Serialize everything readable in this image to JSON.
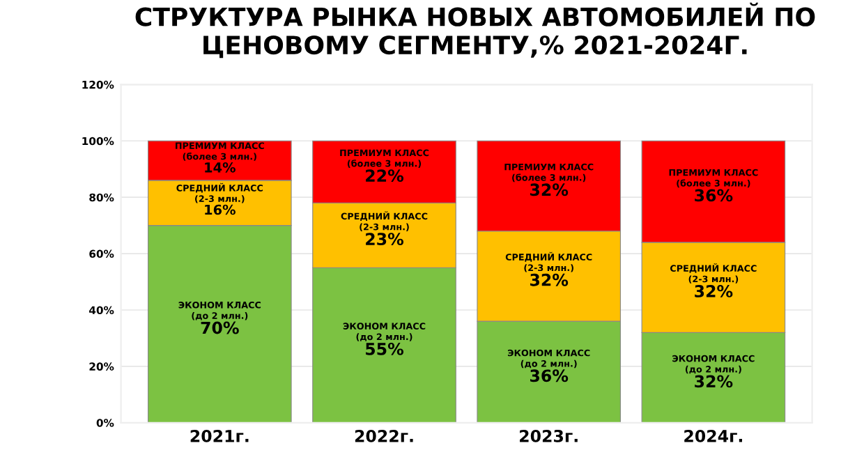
{
  "chart_data": {
    "type": "bar",
    "stacked": true,
    "title": "СТРУКТУРА РЫНКА НОВЫХ АВТОМОБИЛЕЙ ПО ЦЕНОВОМУ СЕГМЕНТУ,% 2021-2024Г.",
    "categories": [
      "2021г.",
      "2022г.",
      "2023г.",
      "2024г."
    ],
    "series": [
      {
        "name": "ЭКОНОМ КЛАСС (до 2 млн.)",
        "color": "#7cc242",
        "values": [
          70,
          55,
          36,
          32
        ],
        "value_labels": [
          "70%",
          "55%",
          "36%",
          "32%"
        ]
      },
      {
        "name": "СРЕДНИЙ КЛАСС (2-3 млн.)",
        "color": "#ffc000",
        "values": [
          16,
          23,
          32,
          32
        ],
        "value_labels": [
          "16%",
          "23%",
          "32%",
          "32%"
        ]
      },
      {
        "name": "ПРЕМИУМ КЛАСС (более 3 млн.)",
        "color": "#ff0000",
        "values": [
          14,
          22,
          32,
          36
        ],
        "value_labels": [
          "14%",
          "22%",
          "32%",
          "36%"
        ]
      }
    ],
    "ylim": [
      0,
      120
    ],
    "yticks": [
      {
        "value": 0,
        "label": "0%"
      },
      {
        "value": 20,
        "label": "20%"
      },
      {
        "value": 40,
        "label": "40%"
      },
      {
        "value": 60,
        "label": "60%"
      },
      {
        "value": 80,
        "label": "80%"
      },
      {
        "value": 100,
        "label": "100%"
      },
      {
        "value": 120,
        "label": "120%"
      }
    ],
    "grid": "y",
    "legend": false
  }
}
